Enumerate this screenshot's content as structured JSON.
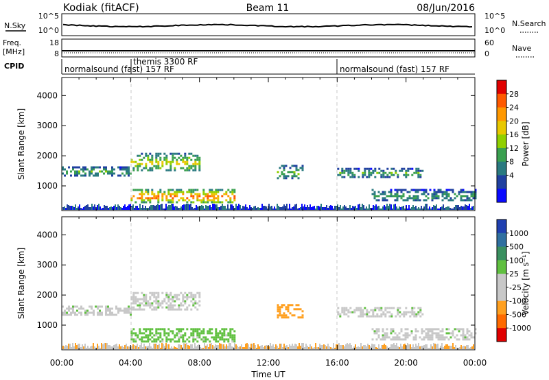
{
  "header": {
    "station": "Kodiak (fitACF)",
    "beam": "Beam 11",
    "date": "08/Jun/2016"
  },
  "strips": {
    "nsky": {
      "label": "N.Sky",
      "ticks": [
        "10^5",
        "10^0"
      ]
    },
    "nsearch": {
      "label": "N.Search",
      "ticks": [
        "10^5",
        "10^0"
      ]
    },
    "freq": {
      "label_line1": "Freq.",
      "label_line2": "[MHz]",
      "ticks": [
        "18",
        "8"
      ]
    },
    "nave": {
      "label": "Nave",
      "ticks": [
        "60",
        "0"
      ]
    },
    "cpid": {
      "label": "CPID",
      "programs": [
        {
          "name": "normalsound (fast) 157 RF",
          "start_hour": 0
        },
        {
          "name": "themis 3300 RF",
          "start_hour": 4
        },
        {
          "name": "normalsound (fast) 157 RF",
          "start_hour": 16
        }
      ]
    }
  },
  "chart_data": [
    {
      "type": "heatmap",
      "title": "Power",
      "ylabel": "Slant Range [km]",
      "xlabel": "Time UT",
      "xlim": [
        0,
        24
      ],
      "ylim": [
        180,
        4600
      ],
      "yticks": [
        1000,
        2000,
        3000,
        4000
      ],
      "colorbar": {
        "label": "Power [dB]",
        "ticks": [
          "28",
          "24",
          "20",
          "16",
          "12",
          "8",
          "4"
        ],
        "colors": [
          "#e00000",
          "#ff5a00",
          "#ff9800",
          "#e8c800",
          "#90d000",
          "#3aa050",
          "#2a7a80",
          "#2040a0",
          "#0a0aff"
        ]
      },
      "echo_bands": [
        {
          "start_hour": 0,
          "end_hour": 4,
          "range_start_km": 1350,
          "range_end_km": 1650,
          "peak_db": 12
        },
        {
          "start_hour": 4,
          "end_hour": 8,
          "range_start_km": 1500,
          "range_end_km": 2100,
          "peak_db": 18
        },
        {
          "start_hour": 4,
          "end_hour": 10,
          "range_start_km": 450,
          "range_end_km": 900,
          "peak_db": 26
        },
        {
          "start_hour": 12.5,
          "end_hour": 14,
          "range_start_km": 1250,
          "range_end_km": 1700,
          "peak_db": 14
        },
        {
          "start_hour": 16,
          "end_hour": 21,
          "range_start_km": 1300,
          "range_end_km": 1600,
          "peak_db": 12
        },
        {
          "start_hour": 18,
          "end_hour": 24,
          "range_start_km": 500,
          "range_end_km": 900,
          "peak_db": 10
        }
      ]
    },
    {
      "type": "heatmap",
      "title": "Velocity",
      "ylabel": "Slant Range [km]",
      "xlabel": "Time UT",
      "xlim": [
        0,
        24
      ],
      "ylim": [
        180,
        4600
      ],
      "yticks": [
        1000,
        2000,
        3000,
        4000
      ],
      "colorbar": {
        "label": "Velocity [m s⁻¹]",
        "ticks": [
          "1000",
          "500",
          "100",
          "25",
          "-25",
          "-100",
          "-500",
          "-1000"
        ],
        "colors": [
          "#2040b0",
          "#3070a0",
          "#3a9060",
          "#60c040",
          "#c8c8c8",
          "#c8c8c8",
          "#ffa020",
          "#ff6a00",
          "#e00000"
        ]
      },
      "echo_bands": [
        {
          "start_hour": 0,
          "end_hour": 4,
          "range_start_km": 1350,
          "range_end_km": 1650,
          "velocity_ms": 0
        },
        {
          "start_hour": 4,
          "end_hour": 8,
          "range_start_km": 1500,
          "range_end_km": 2100,
          "velocity_ms": 0
        },
        {
          "start_hour": 4,
          "end_hour": 10,
          "range_start_km": 450,
          "range_end_km": 900,
          "velocity_ms": 50
        },
        {
          "start_hour": 12.5,
          "end_hour": 14,
          "range_start_km": 1250,
          "range_end_km": 1700,
          "velocity_ms": -300
        },
        {
          "start_hour": 16,
          "end_hour": 21,
          "range_start_km": 1300,
          "range_end_km": 1600,
          "velocity_ms": 0
        },
        {
          "start_hour": 18,
          "end_hour": 24,
          "range_start_km": 500,
          "range_end_km": 900,
          "velocity_ms": 0
        }
      ]
    }
  ],
  "time_axis": {
    "label": "Time UT",
    "ticks": [
      "00:00",
      "04:00",
      "08:00",
      "12:00",
      "16:00",
      "20:00",
      "00:00"
    ]
  }
}
